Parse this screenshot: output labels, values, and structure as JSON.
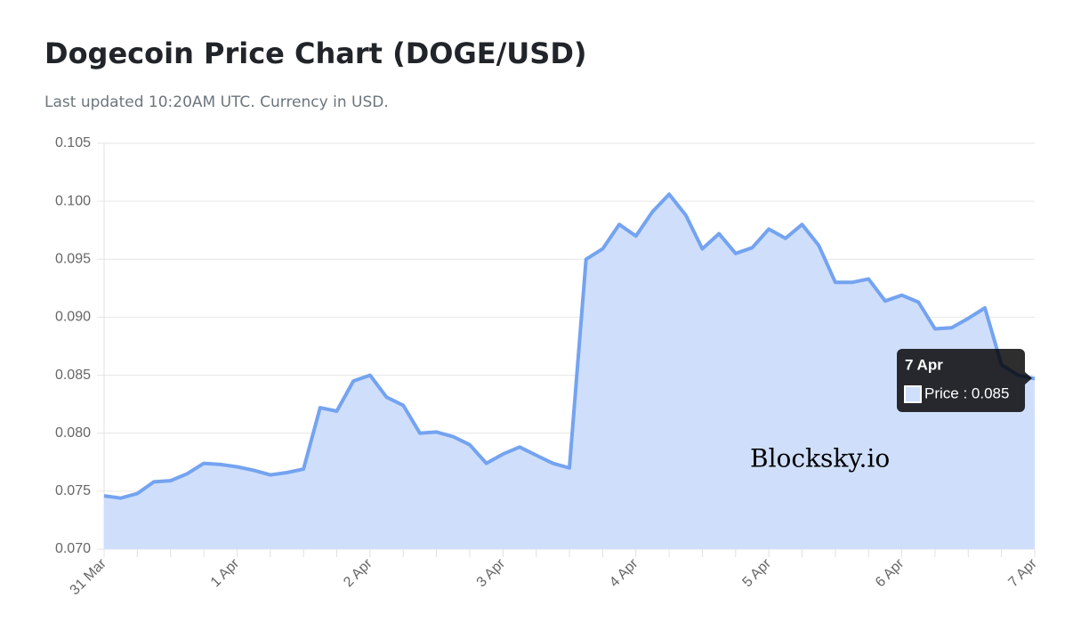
{
  "chart_data": {
    "type": "area",
    "title": "Dogecoin Price Chart (DOGE/USD)",
    "subtitle": "Last updated 10:20AM UTC. Currency in USD.",
    "categories": [
      "31 Mar",
      null,
      null,
      null,
      null,
      null,
      null,
      null,
      "1 Apr",
      null,
      null,
      null,
      null,
      null,
      null,
      null,
      "2 Apr",
      null,
      null,
      null,
      null,
      null,
      null,
      null,
      "3 Apr",
      null,
      null,
      null,
      null,
      null,
      null,
      null,
      "4 Apr",
      null,
      null,
      null,
      null,
      null,
      null,
      null,
      "5 Apr",
      null,
      null,
      null,
      null,
      null,
      null,
      null,
      "6 Apr",
      null,
      null,
      null,
      null,
      null,
      null,
      null,
      "7 Apr"
    ],
    "series": [
      {
        "color": "#74a3f0",
        "fill": "#cfdffb",
        "values": [
          0.0746,
          0.0744,
          0.0748,
          0.0758,
          0.0759,
          0.0765,
          0.0774,
          0.0773,
          0.0771,
          0.0768,
          0.0764,
          0.0766,
          0.0769,
          0.0822,
          0.0819,
          0.0845,
          0.085,
          0.0831,
          0.0824,
          0.08,
          0.0801,
          0.0797,
          0.079,
          0.0774,
          0.0782,
          0.0788,
          0.0781,
          0.0774,
          0.077,
          0.095,
          0.0959,
          0.098,
          0.097,
          0.0991,
          0.1006,
          0.0988,
          0.0959,
          0.0972,
          0.0955,
          0.096,
          0.0976,
          0.0968,
          0.098,
          0.0962,
          0.093,
          0.093,
          0.0933,
          0.0914,
          0.0919,
          0.0913,
          0.089,
          0.0891,
          0.0899,
          0.0908,
          0.0859,
          0.085,
          0.0847
        ]
      }
    ],
    "ylim": [
      0.07,
      0.105
    ],
    "yticks": [
      {
        "value": 0.07,
        "label": "0.070"
      },
      {
        "value": 0.075,
        "label": "0.075"
      },
      {
        "value": 0.08,
        "label": "0.080"
      },
      {
        "value": 0.085,
        "label": "0.085"
      },
      {
        "value": 0.09,
        "label": "0.090"
      },
      {
        "value": 0.095,
        "label": "0.095"
      },
      {
        "value": 0.1,
        "label": "0.100"
      },
      {
        "value": 0.105,
        "label": "0.105"
      }
    ],
    "grid": true,
    "tooltip": {
      "title": "7 Apr",
      "label": "Price : 0.085"
    },
    "watermark": "Blocksky.io"
  }
}
